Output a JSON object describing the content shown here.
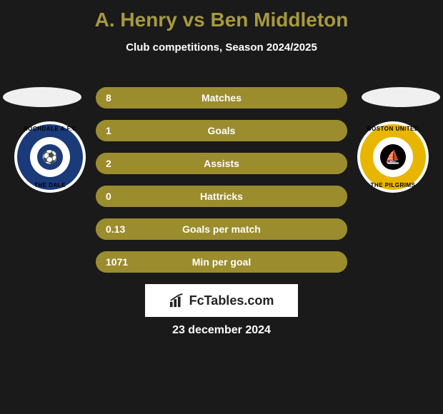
{
  "title": {
    "player1": "A. Henry",
    "vs": "vs",
    "player2": "Ben Middleton",
    "color": "#a79a3f"
  },
  "subtitle": "Club competitions, Season 2024/2025",
  "background_color": "#1a1a1a",
  "text_color": "#ffffff",
  "player_placeholders": {
    "left_color": "#f0f0f0",
    "right_color": "#f0f0f0"
  },
  "clubs": {
    "left": {
      "outer_color": "#ffffff",
      "ring_color": "#1a3a7a",
      "inner_color": "#ffffff",
      "center_color": "#1a3a7a",
      "center_symbol": "⚽",
      "text_top": "ROCHDALE A.F.C",
      "text_bottom": "THE DALE",
      "text_color": "#ffffff"
    },
    "right": {
      "outer_color": "#ffffff",
      "ring_color": "#e8b500",
      "inner_color": "#ffffff",
      "center_color": "#000000",
      "center_symbol": "⛵",
      "text_top": "BOSTON UNITED",
      "text_bottom": "THE PILGRIMS",
      "text_color": "#000000"
    }
  },
  "stats": {
    "bar_bg_color": "#9b8c2e",
    "bar_fill_color": "#9b8c2e",
    "value_font_size": 14,
    "label_font_size": 14,
    "rows": [
      {
        "label": "Matches",
        "left_value": "8",
        "right_value": "",
        "left_pct": 100,
        "right_pct": 0
      },
      {
        "label": "Goals",
        "left_value": "1",
        "right_value": "",
        "left_pct": 100,
        "right_pct": 0
      },
      {
        "label": "Assists",
        "left_value": "2",
        "right_value": "",
        "left_pct": 100,
        "right_pct": 0
      },
      {
        "label": "Hattricks",
        "left_value": "0",
        "right_value": "",
        "left_pct": 50,
        "right_pct": 50
      },
      {
        "label": "Goals per match",
        "left_value": "0.13",
        "right_value": "",
        "left_pct": 100,
        "right_pct": 0
      },
      {
        "label": "Min per goal",
        "left_value": "1071",
        "right_value": "",
        "left_pct": 100,
        "right_pct": 0
      }
    ]
  },
  "branding": {
    "text": "FcTables.com",
    "bg_color": "#ffffff",
    "text_color": "#222222",
    "icon_color": "#222222"
  },
  "date": "23 december 2024"
}
